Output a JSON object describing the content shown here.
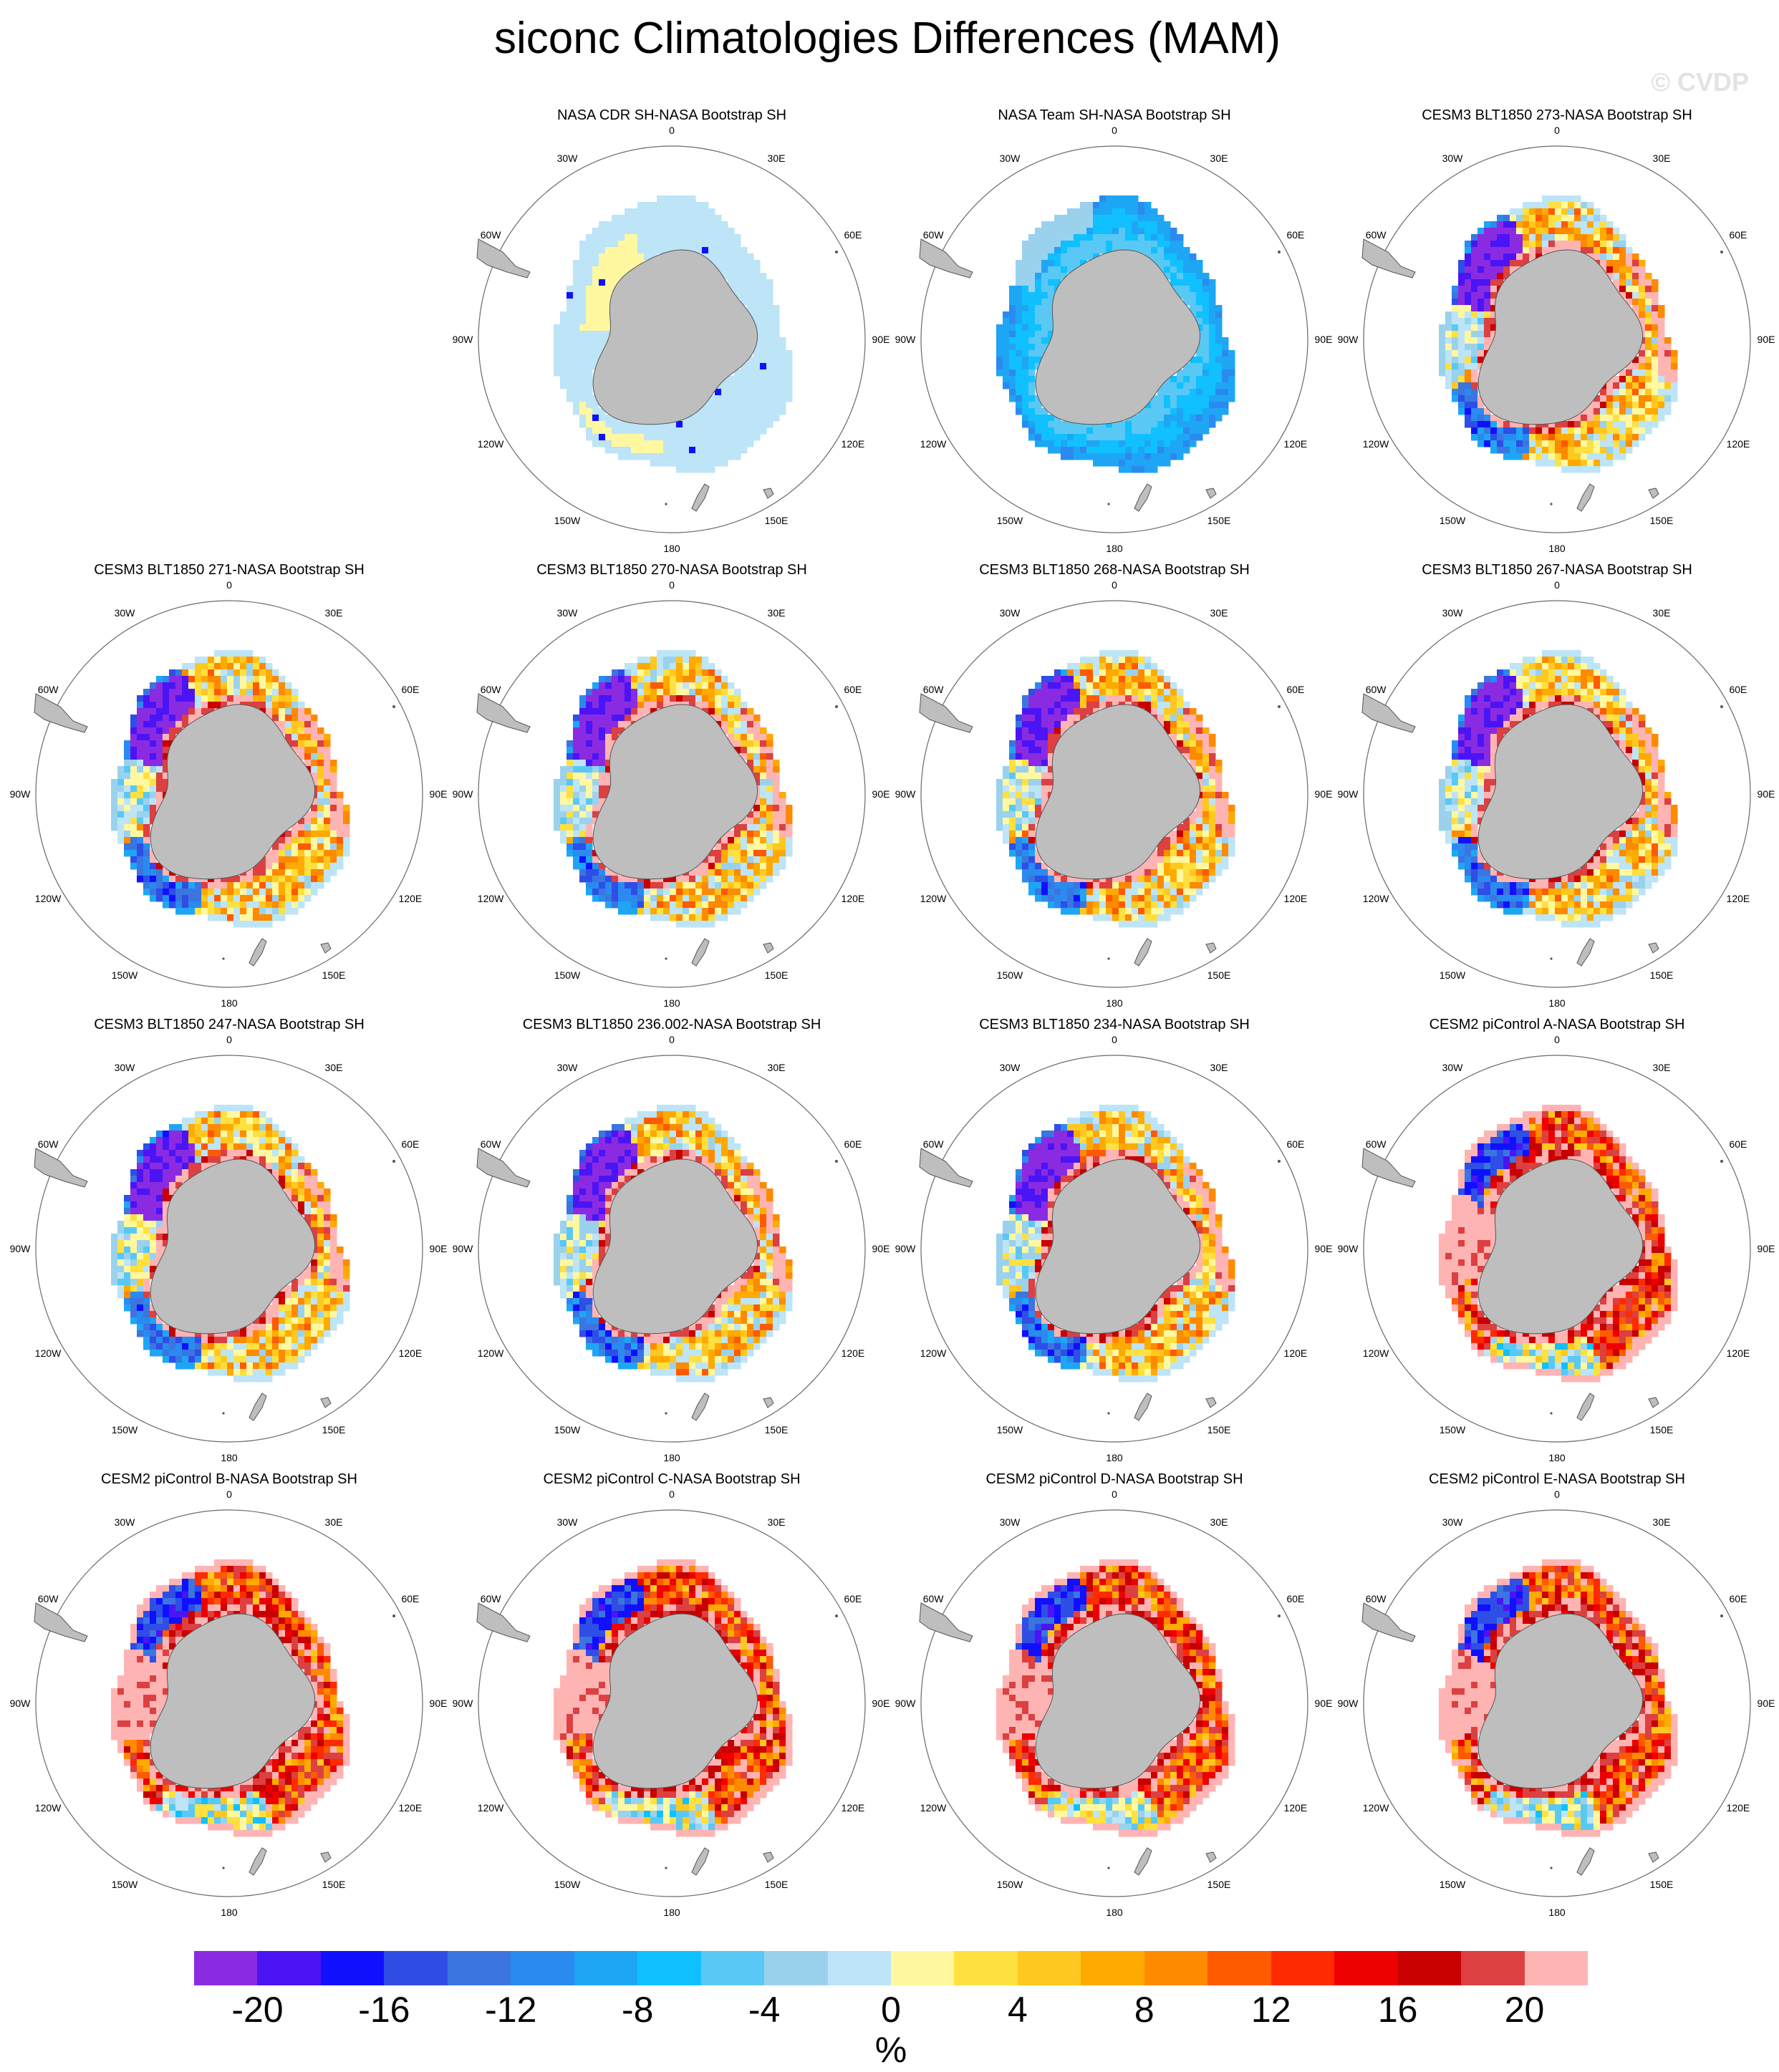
{
  "title": "siconc Climatologies Differences (MAM)",
  "watermark": "© CVDP",
  "units": "%",
  "colors": {
    "land": "#bebebe",
    "coast": "#555555",
    "palette": [
      "#8a2be2",
      "#4b14f5",
      "#1010ff",
      "#2e4ee6",
      "#3a75e0",
      "#2a8af0",
      "#1ea6f5",
      "#10c0ff",
      "#5ac8f5",
      "#9ad2ee",
      "#bde4f7",
      "#fff8a0",
      "#fee040",
      "#fec820",
      "#feaa00",
      "#fe8a00",
      "#fe5a00",
      "#fe2a00",
      "#ee0000",
      "#c80000",
      "#dc4040",
      "#ffb4b4"
    ]
  },
  "colorbar": {
    "ticks": [
      "-20",
      "-16",
      "-12",
      "-8",
      "-4",
      "0",
      "4",
      "8",
      "12",
      "16",
      "20"
    ]
  },
  "longitude_labels": [
    "0",
    "30E",
    "60E",
    "90E",
    "120E",
    "150E",
    "180",
    "150W",
    "120W",
    "90W",
    "60W",
    "30W"
  ],
  "panels": [
    {
      "title": "NASA CDR SH-NASA Bootstrap SH",
      "row": 0,
      "col": 1,
      "pattern": "cdr"
    },
    {
      "title": "NASA Team SH-NASA Bootstrap SH",
      "row": 0,
      "col": 2,
      "pattern": "team"
    },
    {
      "title": "CESM3 BLT1850 273-NASA Bootstrap SH",
      "row": 0,
      "col": 3,
      "pattern": "cesm3"
    },
    {
      "title": "CESM3 BLT1850 271-NASA Bootstrap SH",
      "row": 1,
      "col": 0,
      "pattern": "cesm3"
    },
    {
      "title": "CESM3 BLT1850 270-NASA Bootstrap SH",
      "row": 1,
      "col": 1,
      "pattern": "cesm3"
    },
    {
      "title": "CESM3 BLT1850 268-NASA Bootstrap SH",
      "row": 1,
      "col": 2,
      "pattern": "cesm3"
    },
    {
      "title": "CESM3 BLT1850 267-NASA Bootstrap SH",
      "row": 1,
      "col": 3,
      "pattern": "cesm3"
    },
    {
      "title": "CESM3 BLT1850 247-NASA Bootstrap SH",
      "row": 2,
      "col": 0,
      "pattern": "cesm3"
    },
    {
      "title": "CESM3 BLT1850 236.002-NASA Bootstrap SH",
      "row": 2,
      "col": 1,
      "pattern": "cesm3"
    },
    {
      "title": "CESM3 BLT1850 234-NASA Bootstrap SH",
      "row": 2,
      "col": 2,
      "pattern": "cesm3"
    },
    {
      "title": "CESM2 piControl A-NASA Bootstrap SH",
      "row": 2,
      "col": 3,
      "pattern": "cesm2"
    },
    {
      "title": "CESM2 piControl B-NASA Bootstrap SH",
      "row": 3,
      "col": 0,
      "pattern": "cesm2"
    },
    {
      "title": "CESM2 piControl C-NASA Bootstrap SH",
      "row": 3,
      "col": 1,
      "pattern": "cesm2"
    },
    {
      "title": "CESM2 piControl D-NASA Bootstrap SH",
      "row": 3,
      "col": 2,
      "pattern": "cesm2"
    },
    {
      "title": "CESM2 piControl E-NASA Bootstrap SH",
      "row": 3,
      "col": 3,
      "pattern": "cesm2"
    }
  ]
}
